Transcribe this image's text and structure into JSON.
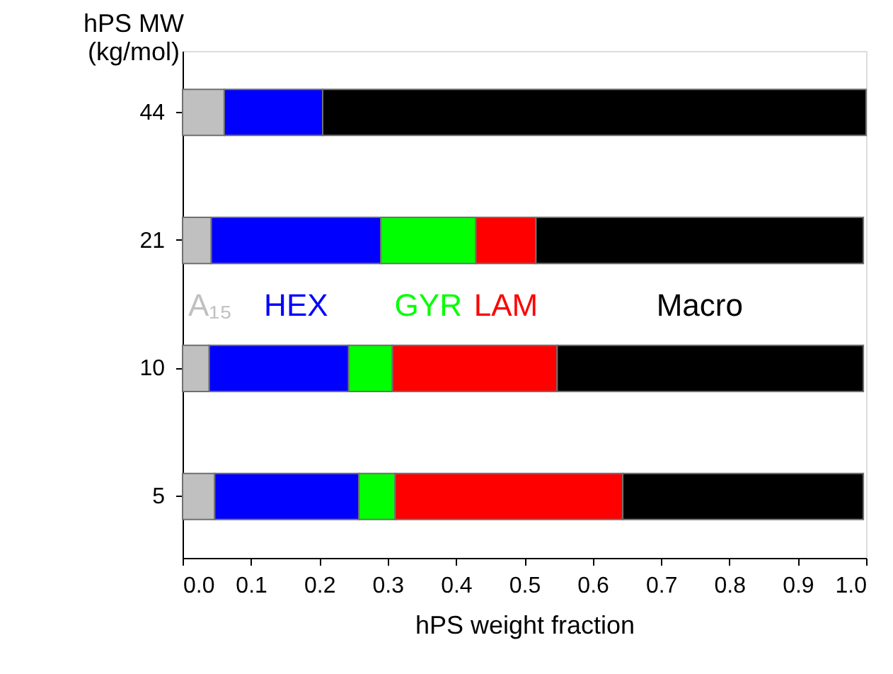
{
  "chart_data": {
    "type": "bar",
    "orientation": "horizontal",
    "stacked": true,
    "xlabel": "hPS weight fraction",
    "ylabel": "hPS MW\n(kg/mol)",
    "categories": [
      "44",
      "21",
      "10",
      "5"
    ],
    "series": [
      {
        "name": "A₁₅",
        "color": "#c0c0c0",
        "values": [
          0.061,
          0.042,
          0.039,
          0.047
        ]
      },
      {
        "name": "HEX",
        "color": "#0000ff",
        "values": [
          0.144,
          0.248,
          0.204,
          0.211
        ]
      },
      {
        "name": "GYR",
        "color": "#00ff00",
        "values": [
          null,
          0.139,
          0.064,
          0.053
        ]
      },
      {
        "name": "LAM",
        "color": "#ff0000",
        "values": [
          null,
          0.088,
          0.241,
          0.333
        ]
      },
      {
        "name": "Macro",
        "color": "#000000",
        "values": [
          0.795,
          0.479,
          0.448,
          0.352
        ]
      }
    ],
    "xlim": [
      0,
      1
    ],
    "xticks": [
      {
        "value": 0,
        "label": "0.0"
      },
      {
        "value": 0.1,
        "label": "0.1"
      },
      {
        "value": 0.2,
        "label": "0.2"
      },
      {
        "value": 0.3,
        "label": "0.3"
      },
      {
        "value": 0.4,
        "label": "0.4"
      },
      {
        "value": 0.5,
        "label": "0.5"
      },
      {
        "value": 0.6,
        "label": "0.6"
      },
      {
        "value": 0.7,
        "label": "0.7"
      },
      {
        "value": 0.8,
        "label": "0.8"
      },
      {
        "value": 0.9,
        "label": "0.9"
      },
      {
        "value": 1,
        "label": "1.0"
      }
    ],
    "grid": false,
    "legend": false
  }
}
